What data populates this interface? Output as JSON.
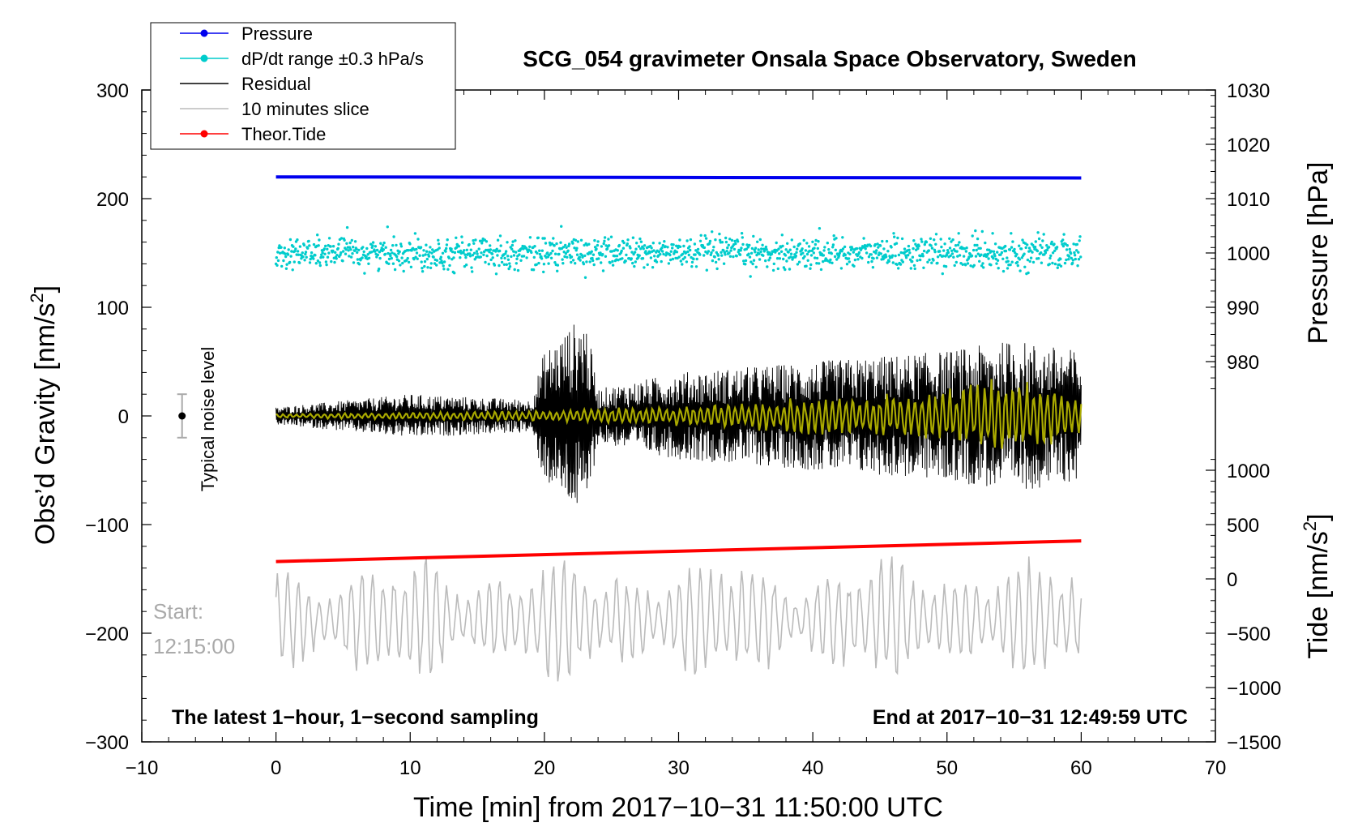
{
  "chart_data": {
    "type": "line",
    "title": "SCG_054 gravimeter Onsala Space Observatory, Sweden",
    "xlabel": "Time [min] from 2017−10−31 11:50:00 UTC",
    "ylabel_left": "Obs’d Gravity [nm/s",
    "ylabel_left_sup": "2",
    "ylabel_left_close": "]",
    "ylabel_right_pressure": "Pressure [hPa]",
    "ylabel_right_tide": "Tide [nm/s",
    "ylabel_right_tide_sup": "2",
    "ylabel_right_tide_close": "]",
    "xlim": [
      -10,
      70
    ],
    "ylim": [
      -300,
      300
    ],
    "pressure_axis": {
      "ticks": [
        980,
        990,
        1000,
        1010,
        1020,
        1030
      ],
      "labels": [
        "980",
        "990",
        "1000",
        "1010",
        "1020",
        "1030"
      ]
    },
    "tide_axis": {
      "ticks": [
        -1500,
        -1000,
        -500,
        0,
        500,
        1000
      ],
      "labels": [
        "−1500",
        "−1000",
        "−500",
        "0",
        "500",
        "1000"
      ]
    },
    "x_ticks": [
      -10,
      0,
      10,
      20,
      30,
      40,
      50,
      60,
      70
    ],
    "x_tick_labels": [
      "−10",
      "0",
      "10",
      "20",
      "30",
      "40",
      "50",
      "60",
      "70"
    ],
    "y_ticks": [
      -300,
      -200,
      -100,
      0,
      100,
      200,
      300
    ],
    "y_tick_labels": [
      "−300",
      "−200",
      "−100",
      "0",
      "100",
      "200",
      "300"
    ],
    "legend": [
      {
        "label": "Pressure",
        "color": "#0000ee",
        "marker": true
      },
      {
        "label": "dP/dt range ±0.3 hPa/s",
        "color": "#00cccc",
        "marker": true
      },
      {
        "label": "Residual",
        "color": "#000000",
        "marker": false
      },
      {
        "label": "10 minutes slice",
        "color": "#bbbbbb",
        "marker": false
      },
      {
        "label": "Theor.Tide",
        "color": "#ff0000",
        "marker": true
      }
    ],
    "legend_position": "top-left",
    "annotations": {
      "start_label": "Start:",
      "start_time": "12:15:00",
      "bottom_left": "The latest 1−hour, 1−second sampling",
      "bottom_right": "End at 2017−10−31 12:49:59 UTC",
      "noise_label": "Typical noise level"
    },
    "noise_bar": {
      "x": -7,
      "y": 0,
      "err": 20
    },
    "series": [
      {
        "name": "Pressure",
        "color": "#0000ee",
        "axis": "gravity",
        "x": [
          0,
          30,
          60
        ],
        "y": [
          220,
          219.5,
          219
        ]
      },
      {
        "name": "dP/dt range ±0.3 hPa/s",
        "color": "#00cccc",
        "axis": "gravity",
        "center": 150,
        "spread": 12
      },
      {
        "name": "Residual",
        "color": "#000000",
        "axis": "gravity",
        "x_range": [
          0,
          60
        ],
        "envelope_x": [
          0,
          10,
          19,
          20,
          23,
          24,
          30,
          40,
          50,
          55,
          60
        ],
        "envelope_y": [
          8,
          20,
          15,
          60,
          95,
          25,
          40,
          50,
          60,
          70,
          60
        ]
      },
      {
        "name": "Residual smoothed",
        "color": "#bbbb00",
        "axis": "gravity",
        "x_range": [
          0,
          60
        ],
        "envelope_x": [
          0,
          20,
          30,
          40,
          50,
          55,
          60
        ],
        "envelope_y": [
          2,
          5,
          10,
          18,
          25,
          40,
          20
        ]
      },
      {
        "name": "Theor.Tide",
        "color": "#ff0000",
        "axis": "gravity",
        "x": [
          0,
          60
        ],
        "y": [
          -134,
          -115
        ]
      },
      {
        "name": "10 minutes slice",
        "color": "#bbbbbb",
        "axis": "gravity",
        "x_range": [
          0,
          60
        ],
        "center": -188,
        "amplitude": [
          20,
          65
        ]
      }
    ]
  }
}
